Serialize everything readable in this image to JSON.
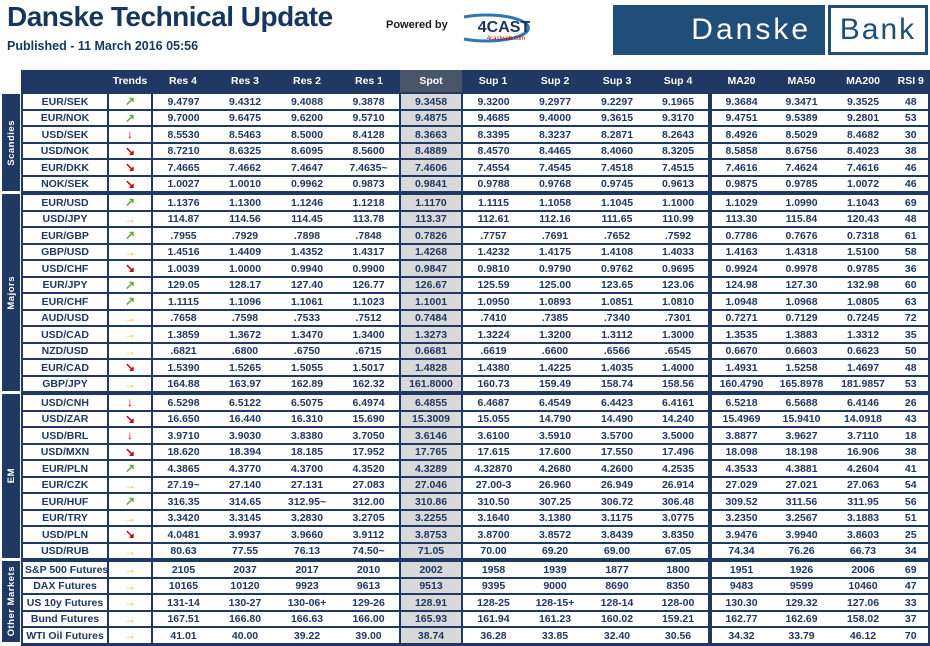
{
  "header": {
    "title": "Danske Technical Update",
    "published": "Published - 11 March 2016 05:56",
    "powered_by_label": "Powered by",
    "vendor_name": "4CAST",
    "vendor_sub": "4castweb.com",
    "bank_name_left": "Danske",
    "bank_name_right": "Bank"
  },
  "colors": {
    "navy": "#1F3864",
    "title_navy": "#17365D",
    "logo_blue": "#1F4E79",
    "spot_gray": "#D9D9D9",
    "trend_up_green": "#5BAE2E",
    "trend_flat_amber": "#FFC000",
    "trend_down_red": "#C00000",
    "vendor_swoosh_blue": "#2E75B6",
    "vendor_sub_red": "#C00000"
  },
  "trend_icons": {
    "up": "↗",
    "flat": "→",
    "down": "↘",
    "down-strong": "↓"
  },
  "table": {
    "columns": [
      "",
      "Trends",
      "Res 4",
      "Res 3",
      "Res 2",
      "Res 1",
      "Spot",
      "Sup 1",
      "Sup 2",
      "Sup 3",
      "Sup 4",
      "MA20",
      "MA50",
      "MA200",
      "RSI 9"
    ],
    "sections": [
      {
        "label": "Scandies",
        "rows": [
          {
            "pair": "EUR/SEK",
            "trend": "up",
            "values": [
              "9.4797",
              "9.4312",
              "9.4088",
              "9.3878",
              "9.3458",
              "9.3200",
              "9.2977",
              "9.2297",
              "9.1965",
              "9.3684",
              "9.3471",
              "9.3525",
              "48"
            ]
          },
          {
            "pair": "EUR/NOK",
            "trend": "up",
            "values": [
              "9.7000",
              "9.6475",
              "9.6200",
              "9.5710",
              "9.4875",
              "9.4685",
              "9.4000",
              "9.3615",
              "9.3170",
              "9.4751",
              "9.5389",
              "9.2801",
              "53"
            ]
          },
          {
            "pair": "USD/SEK",
            "trend": "down-strong",
            "values": [
              "8.5530",
              "8.5463",
              "8.5000",
              "8.4128",
              "8.3663",
              "8.3395",
              "8.3237",
              "8.2871",
              "8.2643",
              "8.4926",
              "8.5029",
              "8.4682",
              "30"
            ]
          },
          {
            "pair": "USD/NOK",
            "trend": "down",
            "values": [
              "8.7210",
              "8.6325",
              "8.6095",
              "8.5600",
              "8.4889",
              "8.4570",
              "8.4465",
              "8.4060",
              "8.3205",
              "8.5858",
              "8.6756",
              "8.4023",
              "38"
            ]
          },
          {
            "pair": "EUR/DKK",
            "trend": "down",
            "values": [
              "7.4665",
              "7.4662",
              "7.4647",
              "7.4635~",
              "7.4606",
              "7.4554",
              "7.4545",
              "7.4518",
              "7.4515",
              "7.4616",
              "7.4624",
              "7.4616",
              "46"
            ]
          },
          {
            "pair": "NOK/SEK",
            "trend": "down",
            "values": [
              "1.0027",
              "1.0010",
              "0.9962",
              "0.9873",
              "0.9841",
              "0.9788",
              "0.9768",
              "0.9745",
              "0.9613",
              "0.9875",
              "0.9785",
              "1.0072",
              "46"
            ]
          }
        ]
      },
      {
        "label": "Majors",
        "rows": [
          {
            "pair": "EUR/USD",
            "trend": "up",
            "values": [
              "1.1376",
              "1.1300",
              "1.1246",
              "1.1218",
              "1.1170",
              "1.1115",
              "1.1058",
              "1.1045",
              "1.1000",
              "1.1029",
              "1.0990",
              "1.1043",
              "69"
            ]
          },
          {
            "pair": "USD/JPY",
            "trend": "flat",
            "values": [
              "114.87",
              "114.56",
              "114.45",
              "113.78",
              "113.37",
              "112.61",
              "112.16",
              "111.65",
              "110.99",
              "113.30",
              "115.84",
              "120.43",
              "48"
            ]
          },
          {
            "pair": "EUR/GBP",
            "trend": "up",
            "values": [
              ".7955",
              ".7929",
              ".7898",
              ".7848",
              "0.7826",
              ".7757",
              ".7691",
              ".7652",
              ".7592",
              "0.7786",
              "0.7676",
              "0.7318",
              "61"
            ]
          },
          {
            "pair": "GBP/USD",
            "trend": "flat",
            "values": [
              "1.4516",
              "1.4409",
              "1.4352",
              "1.4317",
              "1.4268",
              "1.4232",
              "1.4175",
              "1.4108",
              "1.4033",
              "1.4163",
              "1.4318",
              "1.5100",
              "58"
            ]
          },
          {
            "pair": "USD/CHF",
            "trend": "down",
            "values": [
              "1.0039",
              "1.0000",
              "0.9940",
              "0.9900",
              "0.9847",
              "0.9810",
              "0.9790",
              "0.9762",
              "0.9695",
              "0.9924",
              "0.9978",
              "0.9785",
              "36"
            ]
          },
          {
            "pair": "EUR/JPY",
            "trend": "up",
            "values": [
              "129.05",
              "128.17",
              "127.40",
              "126.77",
              "126.67",
              "125.59",
              "125.00",
              "123.65",
              "123.06",
              "124.98",
              "127.30",
              "132.98",
              "60"
            ]
          },
          {
            "pair": "EUR/CHF",
            "trend": "up",
            "values": [
              "1.1115",
              "1.1096",
              "1.1061",
              "1.1023",
              "1.1001",
              "1.0950",
              "1.0893",
              "1.0851",
              "1.0810",
              "1.0948",
              "1.0968",
              "1.0805",
              "63"
            ]
          },
          {
            "pair": "AUD/USD",
            "trend": "flat",
            "values": [
              ".7658",
              ".7598",
              ".7533",
              ".7512",
              "0.7484",
              ".7410",
              ".7385",
              ".7340",
              ".7301",
              "0.7271",
              "0.7129",
              "0.7245",
              "72"
            ]
          },
          {
            "pair": "USD/CAD",
            "trend": "flat",
            "values": [
              "1.3859",
              "1.3672",
              "1.3470",
              "1.3400",
              "1.3273",
              "1.3224",
              "1.3200",
              "1.3112",
              "1.3000",
              "1.3535",
              "1.3883",
              "1.3312",
              "35"
            ]
          },
          {
            "pair": "NZD/USD",
            "trend": "flat",
            "values": [
              ".6821",
              ".6800",
              ".6750",
              ".6715",
              "0.6681",
              ".6619",
              ".6600",
              ".6566",
              ".6545",
              "0.6670",
              "0.6603",
              "0.6623",
              "50"
            ]
          },
          {
            "pair": "EUR/CAD",
            "trend": "down",
            "values": [
              "1.5390",
              "1.5265",
              "1.5055",
              "1.5017",
              "1.4828",
              "1.4380",
              "1.4225",
              "1.4035",
              "1.4000",
              "1.4931",
              "1.5258",
              "1.4697",
              "48"
            ]
          },
          {
            "pair": "GBP/JPY",
            "trend": "flat",
            "values": [
              "164.88",
              "163.97",
              "162.89",
              "162.32",
              "161.8000",
              "160.73",
              "159.49",
              "158.74",
              "158.56",
              "160.4790",
              "165.8978",
              "181.9857",
              "53"
            ]
          }
        ]
      },
      {
        "label": "EM",
        "rows": [
          {
            "pair": "USD/CNH",
            "trend": "down-strong",
            "values": [
              "6.5298",
              "6.5122",
              "6.5075",
              "6.4974",
              "6.4855",
              "6.4687",
              "6.4549",
              "6.4423",
              "6.4161",
              "6.5218",
              "6.5688",
              "6.4146",
              "26"
            ]
          },
          {
            "pair": "USD/ZAR",
            "trend": "down",
            "values": [
              "16.650",
              "16.440",
              "16.310",
              "15.690",
              "15.3009",
              "15.055",
              "14.790",
              "14.490",
              "14.240",
              "15.4969",
              "15.9410",
              "14.0918",
              "43"
            ]
          },
          {
            "pair": "USD/BRL",
            "trend": "down-strong",
            "values": [
              "3.9710",
              "3.9030",
              "3.8380",
              "3.7050",
              "3.6146",
              "3.6100",
              "3.5910",
              "3.5700",
              "3.5000",
              "3.8877",
              "3.9627",
              "3.7110",
              "18"
            ]
          },
          {
            "pair": "USD/MXN",
            "trend": "down",
            "values": [
              "18.620",
              "18.394",
              "18.185",
              "17.952",
              "17.765",
              "17.615",
              "17.600",
              "17.550",
              "17.496",
              "18.098",
              "18.198",
              "16.906",
              "38"
            ]
          },
          {
            "pair": "EUR/PLN",
            "trend": "up",
            "values": [
              "4.3865",
              "4.3770",
              "4.3700",
              "4.3520",
              "4.3289",
              "4.32870",
              "4.2680",
              "4.2600",
              "4.2535",
              "4.3533",
              "4.3881",
              "4.2604",
              "41"
            ]
          },
          {
            "pair": "EUR/CZK",
            "trend": "flat",
            "values": [
              "27.19~",
              "27.140",
              "27.131",
              "27.083",
              "27.046",
              "27.00-3",
              "26.960",
              "26.949",
              "26.914",
              "27.029",
              "27.021",
              "27.063",
              "54"
            ]
          },
          {
            "pair": "EUR/HUF",
            "trend": "up",
            "values": [
              "316.35",
              "314.65",
              "312.95~",
              "312.00",
              "310.86",
              "310.50",
              "307.25",
              "306.72",
              "306.48",
              "309.52",
              "311.56",
              "311.95",
              "56"
            ]
          },
          {
            "pair": "EUR/TRY",
            "trend": "flat",
            "values": [
              "3.3420",
              "3.3145",
              "3.2830",
              "3.2705",
              "3.2255",
              "3.1640",
              "3.1380",
              "3.1175",
              "3.0775",
              "3.2350",
              "3.2567",
              "3.1883",
              "51"
            ]
          },
          {
            "pair": "USD/PLN",
            "trend": "down",
            "values": [
              "4.0481",
              "3.9937",
              "3.9660",
              "3.9112",
              "3.8753",
              "3.8700",
              "3.8572",
              "3.8439",
              "3.8350",
              "3.9476",
              "3.9940",
              "3.8603",
              "25"
            ]
          },
          {
            "pair": "USD/RUB",
            "trend": "flat",
            "values": [
              "80.63",
              "77.55",
              "76.13",
              "74.50~",
              "71.05",
              "70.00",
              "69.20",
              "69.00",
              "67.05",
              "74.34",
              "76.26",
              "66.73",
              "34"
            ]
          }
        ]
      },
      {
        "label": "Other Markets",
        "rows": [
          {
            "pair": "S&P 500 Futures",
            "trend": "flat",
            "values": [
              "2105",
              "2037",
              "2017",
              "2010",
              "2002",
              "1958",
              "1939",
              "1877",
              "1800",
              "1951",
              "1926",
              "2006",
              "69"
            ]
          },
          {
            "pair": "DAX Futures",
            "trend": "flat",
            "values": [
              "10165",
              "10120",
              "9923",
              "9613",
              "9513",
              "9395",
              "9000",
              "8690",
              "8350",
              "9483",
              "9599",
              "10460",
              "47"
            ]
          },
          {
            "pair": "US 10y Futures",
            "trend": "flat",
            "values": [
              "131-14",
              "130-27",
              "130-06+",
              "129-26",
              "128.91",
              "128-25",
              "128-15+",
              "128-14",
              "128-00",
              "130.30",
              "129.32",
              "127.06",
              "33"
            ]
          },
          {
            "pair": "Bund Futures",
            "trend": "flat",
            "values": [
              "167.51",
              "166.80",
              "166.63",
              "166.00",
              "165.93",
              "161.94",
              "161.23",
              "160.02",
              "159.21",
              "162.77",
              "162.69",
              "158.02",
              "37"
            ]
          },
          {
            "pair": "WTI Oil Futures",
            "trend": "flat",
            "values": [
              "41.01",
              "40.00",
              "39.22",
              "39.00",
              "38.74",
              "36.28",
              "33.85",
              "32.40",
              "30.56",
              "34.32",
              "33.79",
              "46.12",
              "70"
            ]
          }
        ]
      }
    ]
  }
}
